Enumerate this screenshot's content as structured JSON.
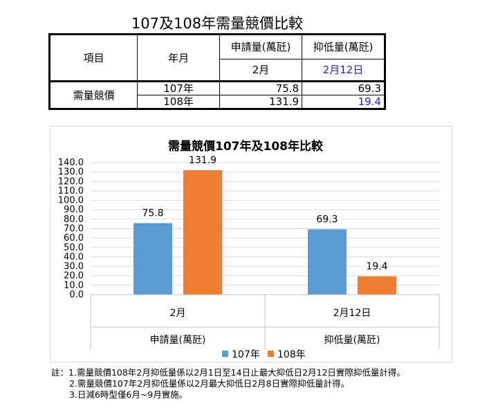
{
  "page_title": "107及108年需量競價比較",
  "table": {
    "col_item": "項目",
    "col_month": "年月",
    "col_apply": "申請量(萬瓩)",
    "col_reduce": "抑低量(萬瓩)",
    "sub_apply": "2月",
    "sub_reduce": "2月12日",
    "row_label": "需量競價",
    "rows": [
      {
        "year": "107年",
        "apply": "75.8",
        "reduce": "69.3"
      },
      {
        "year": "108年",
        "apply": "131.9",
        "reduce": "19.4"
      }
    ],
    "highlight_color": "#1f1fd1"
  },
  "chart_data": {
    "type": "bar",
    "title": "需量競價107年及108年比較",
    "categories": [
      "2月",
      "2月12日"
    ],
    "group_labels": [
      "申請量(萬瓩)",
      "抑低量(萬瓩)"
    ],
    "series": [
      {
        "name": "107年",
        "values": [
          75.8,
          69.3
        ],
        "color": "#5b9bd5"
      },
      {
        "name": "108年",
        "values": [
          131.9,
          19.4
        ],
        "color": "#ed7d31"
      }
    ],
    "data_labels": [
      [
        "75.8",
        "69.3"
      ],
      [
        "131.9",
        "19.4"
      ]
    ],
    "ylim": [
      0,
      140
    ],
    "yticks": [
      "0.0",
      "10.0",
      "20.0",
      "30.0",
      "40.0",
      "50.0",
      "60.0",
      "70.0",
      "80.0",
      "90.0",
      "100.0",
      "110.0",
      "120.0",
      "130.0",
      "140.0"
    ],
    "grid": true,
    "legend_position": "bottom"
  },
  "notes": {
    "prefix": "註：",
    "items": [
      "1.需量競價108年2月抑低量係以2月1日至14日止最大抑低日2月12日實際抑低量計得。",
      "2.需量競價107年2月抑低量係以2月最大抑低日2月8日實際抑低量計得。",
      "3.日減6時型僅6月~9月實施。"
    ]
  }
}
